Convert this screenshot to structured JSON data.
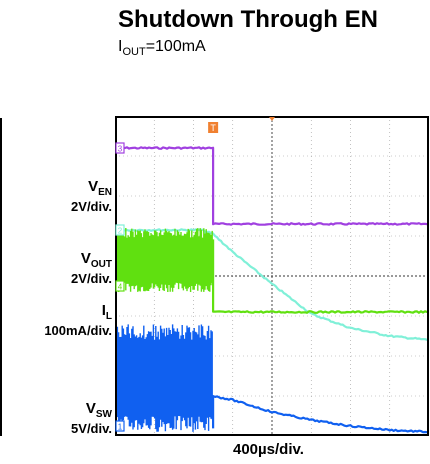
{
  "title": "Shutdown Through EN",
  "subtitle": {
    "prefix": "I",
    "sub": "OUT",
    "suffix": "=100mA"
  },
  "x_label": "400µs/div.",
  "channels": [
    {
      "id": "en",
      "name": "V",
      "sub": "EN",
      "scale": "2V/div.",
      "marker": "3",
      "color": "#a040e0"
    },
    {
      "id": "out",
      "name": "V",
      "sub": "OUT",
      "scale": "2V/div.",
      "marker": "2",
      "color": "#80f0d8"
    },
    {
      "id": "il",
      "name": "I",
      "sub": "L",
      "scale": "100mA/div.",
      "marker": "4",
      "color": "#60e010"
    },
    {
      "id": "sw",
      "name": "V",
      "sub": "SW",
      "scale": "5V/div.",
      "marker": "1",
      "color": "#1060f0"
    }
  ],
  "trigger_marker": "T",
  "chart_data": {
    "type": "line",
    "x_unit": "div",
    "x_range": [
      0,
      8
    ],
    "y_range": [
      0,
      8
    ],
    "grid": true,
    "trigger_x": 2.5,
    "series": [
      {
        "name": "V_EN",
        "x": [
          0,
          2.5,
          2.5,
          8
        ],
        "y": [
          7.2,
          7.2,
          5.3,
          5.3
        ]
      },
      {
        "name": "V_OUT",
        "x": [
          0,
          2.2,
          2.5,
          3.0,
          4.0,
          5.0,
          6.0,
          7.0,
          8.0
        ],
        "y": [
          5.15,
          5.15,
          5.05,
          4.6,
          3.8,
          3.05,
          2.7,
          2.5,
          2.4
        ]
      },
      {
        "name": "I_L",
        "x": [
          0,
          2.5,
          2.5,
          8
        ],
        "y": [
          4.9,
          4.9,
          3.1,
          3.1
        ],
        "switching_band": [
          3.6,
          5.2
        ]
      },
      {
        "name": "V_SW",
        "x": [
          0,
          2.5,
          2.5,
          3.0,
          4.0,
          5.0,
          6.0,
          7.0,
          8.0
        ],
        "y": [
          0.2,
          0.2,
          1.0,
          0.9,
          0.6,
          0.4,
          0.25,
          0.15,
          0.1
        ],
        "switching_band": [
          0.1,
          2.8
        ]
      }
    ]
  }
}
